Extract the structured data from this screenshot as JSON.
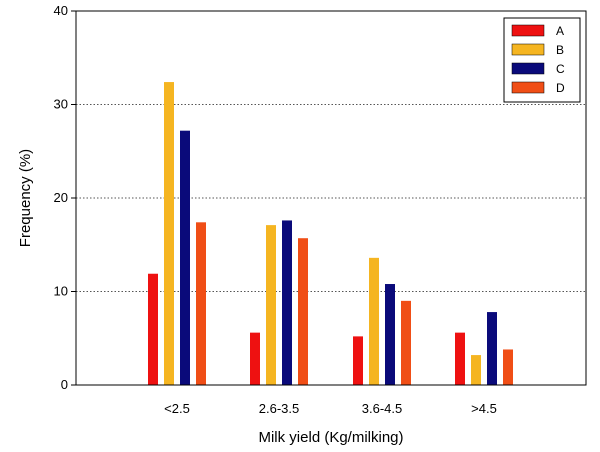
{
  "chart_data": {
    "type": "bar",
    "title": "",
    "xlabel": "Milk yield (Kg/milking)",
    "ylabel": "Frequency (%)",
    "ylim": [
      0,
      40
    ],
    "yticks": [
      "0",
      "10",
      "20",
      "30",
      "40"
    ],
    "categories": [
      "<2.5",
      "2.6-3.5",
      "3.6-4.5",
      ">4.5"
    ],
    "grid": "horizontal dotted at 10, 20, 30",
    "legend_position": "top-right",
    "series": [
      {
        "name": "A",
        "color": "#ee1111",
        "values": [
          11.9,
          5.6,
          5.2,
          5.6
        ]
      },
      {
        "name": "B",
        "color": "#f5b521",
        "values": [
          32.4,
          17.1,
          13.6,
          3.2
        ]
      },
      {
        "name": "C",
        "color": "#0a0a7a",
        "values": [
          27.2,
          17.6,
          10.8,
          7.8
        ]
      },
      {
        "name": "D",
        "color": "#f04e16",
        "values": [
          17.4,
          15.7,
          9.0,
          3.8
        ]
      }
    ]
  }
}
